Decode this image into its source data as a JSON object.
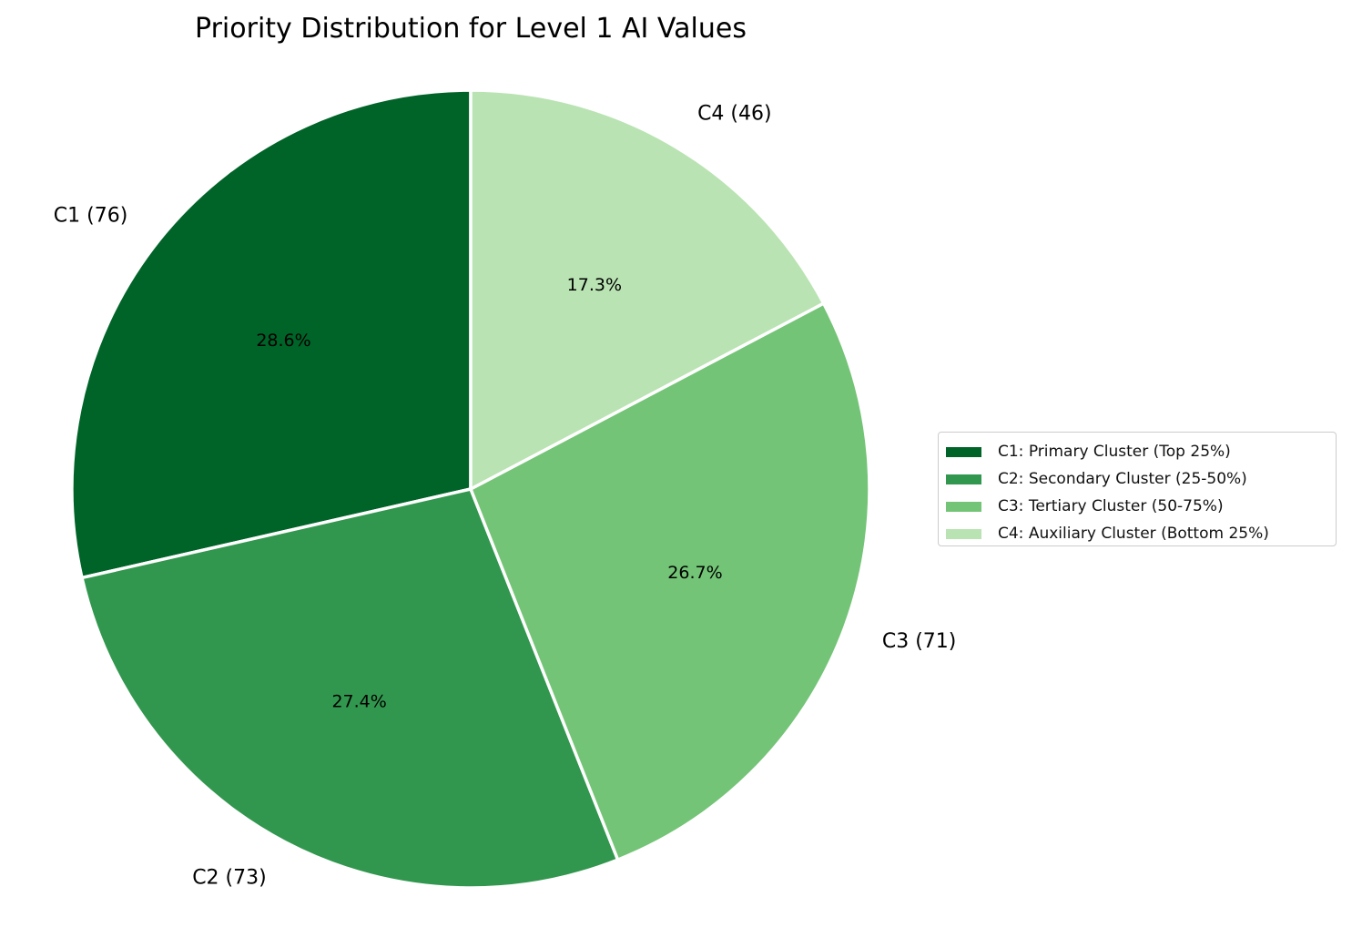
{
  "chart_data": {
    "type": "pie",
    "title": "Priority Distribution for Level 1 AI Values",
    "slices": [
      {
        "label": "C1 (76)",
        "value": 76,
        "percent_label": "28.6%",
        "color": "#006428",
        "legend": "C1: Primary Cluster (Top 25%)"
      },
      {
        "label": "C2 (73)",
        "value": 73,
        "percent_label": "27.4%",
        "color": "#32974e",
        "legend": "C2: Secondary Cluster (25-50%)"
      },
      {
        "label": "C3 (71)",
        "value": 71,
        "percent_label": "26.7%",
        "color": "#73c476",
        "legend": "C3: Tertiary Cluster (50-75%)"
      },
      {
        "label": "C4 (46)",
        "value": 46,
        "percent_label": "17.3%",
        "color": "#b9e3b2",
        "legend": "C4: Auxiliary Cluster (Bottom 25%)"
      }
    ],
    "start_angle_deg": 90,
    "direction": "counterclockwise",
    "legend_position": "right",
    "edge_color": "#ffffff"
  }
}
